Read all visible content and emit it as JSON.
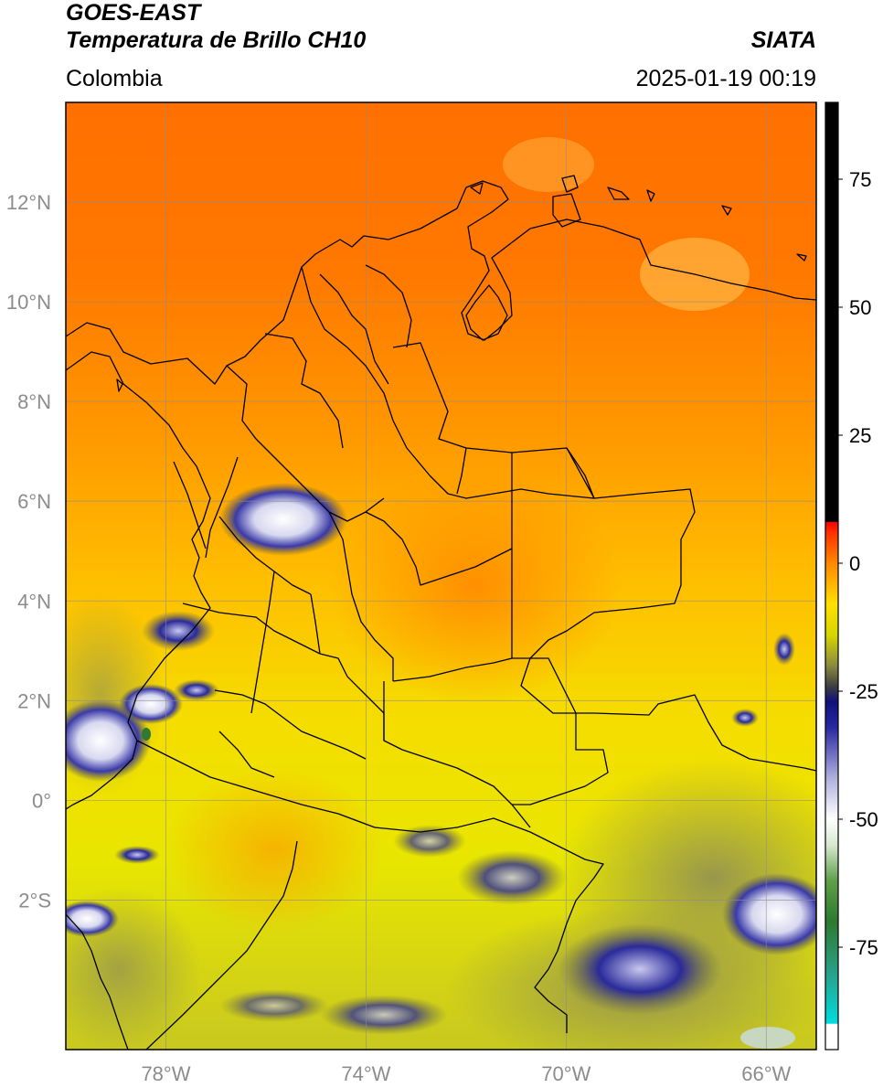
{
  "header": {
    "satellite": "GOES-EAST",
    "product": "Temperatura de Brillo CH10",
    "region": "Colombia",
    "brand": "SIATA",
    "timestamp": "2025-01-19 00:19"
  },
  "axes": {
    "lon_ticks": [
      {
        "value": -78,
        "label": "78°W"
      },
      {
        "value": -74,
        "label": "74°W"
      },
      {
        "value": -70,
        "label": "70°W"
      },
      {
        "value": -66,
        "label": "66°W"
      }
    ],
    "lat_ticks": [
      {
        "value": 12,
        "label": "12°N"
      },
      {
        "value": 10,
        "label": "10°N"
      },
      {
        "value": 8,
        "label": "8°N"
      },
      {
        "value": 6,
        "label": "6°N"
      },
      {
        "value": 4,
        "label": "4°N"
      },
      {
        "value": 2,
        "label": "2°N"
      },
      {
        "value": 0,
        "label": "0°"
      },
      {
        "value": -2,
        "label": "2°S"
      }
    ],
    "lon_range": [
      -80,
      -65
    ],
    "lat_range": [
      -5,
      14
    ],
    "grid": true
  },
  "colorbar": {
    "range": [
      -95,
      90
    ],
    "ticks": [
      {
        "value": 75,
        "label": "75"
      },
      {
        "value": 50,
        "label": "50"
      },
      {
        "value": 25,
        "label": "25"
      },
      {
        "value": 0,
        "label": "0"
      },
      {
        "value": -25,
        "label": "-25"
      },
      {
        "value": -50,
        "label": "-50"
      },
      {
        "value": -75,
        "label": "-75"
      }
    ],
    "stops": [
      {
        "value": -95,
        "color": "#ffffff"
      },
      {
        "value": -90,
        "color": "#ffffff"
      },
      {
        "value": -89.9,
        "color": "#00dcdc"
      },
      {
        "value": -80,
        "color": "#2aa089"
      },
      {
        "value": -70,
        "color": "#2e7a2e"
      },
      {
        "value": -62,
        "color": "#5f9f4a"
      },
      {
        "value": -55,
        "color": "#d8e8d0"
      },
      {
        "value": -50,
        "color": "#ffffff"
      },
      {
        "value": -42,
        "color": "#b0b0dd"
      },
      {
        "value": -32,
        "color": "#2828a0"
      },
      {
        "value": -27,
        "color": "#10107a"
      },
      {
        "value": -24,
        "color": "#404040"
      },
      {
        "value": -20,
        "color": "#8a8a40"
      },
      {
        "value": -14,
        "color": "#d6d600"
      },
      {
        "value": -8,
        "color": "#ffe000"
      },
      {
        "value": 0,
        "color": "#ff8800"
      },
      {
        "value": 6,
        "color": "#ff3000"
      },
      {
        "value": 8,
        "color": "#ff0000"
      },
      {
        "value": 8.1,
        "color": "#000000"
      },
      {
        "value": 90,
        "color": "#000000"
      }
    ]
  },
  "colors": {
    "background_warm": "#ff8800",
    "background_orange_dark": "#ff6a00",
    "background_yellow": "#f4e600",
    "cloud_blue": "#1a1a8a",
    "cloud_white": "#f4f4ff",
    "boundary": "#000000",
    "grid": "#8c8c8c",
    "tick_label": "#8c8c8c"
  }
}
